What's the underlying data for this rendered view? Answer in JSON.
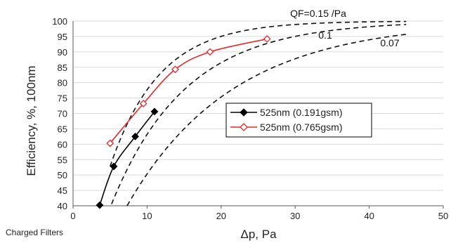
{
  "chart_data": {
    "type": "line",
    "title": "",
    "xlabel": "Δp, Pa",
    "ylabel": "Efficiency, %, 100nm",
    "xlim": [
      0,
      50
    ],
    "ylim": [
      40,
      100
    ],
    "x_ticks": [
      "0",
      "10",
      "20",
      "30",
      "40",
      "50"
    ],
    "y_ticks": [
      "40",
      "45",
      "50",
      "55",
      "60",
      "65",
      "70",
      "75",
      "80",
      "85",
      "90",
      "95",
      "100"
    ],
    "grid": "horizontal",
    "legend_position": "right",
    "footnote": "Charged Filters",
    "series": [
      {
        "name": "525nm (0.191gsm)",
        "color": "#000000",
        "marker": "filled-diamond",
        "x": [
          3.6,
          5.5,
          8.4,
          11.0
        ],
        "y": [
          40.2,
          52.8,
          62.5,
          70.6
        ]
      },
      {
        "name": "525nm (0.765gsm)",
        "color": "#e8282b",
        "marker": "open-diamond",
        "x": [
          5.0,
          9.5,
          13.8,
          18.5,
          26.2
        ],
        "y": [
          60.3,
          73.2,
          84.3,
          90.0,
          94.2
        ]
      }
    ],
    "qf_curves": [
      {
        "qf": 0.15,
        "label": "QF=0.15 /Pa",
        "x_start": 5.0,
        "x_end": 45
      },
      {
        "qf": 0.1,
        "label": "0.1",
        "x_start": 5.2,
        "x_end": 45
      },
      {
        "qf": 0.07,
        "label": "0.07",
        "x_start": 7.3,
        "x_end": 45
      }
    ]
  }
}
